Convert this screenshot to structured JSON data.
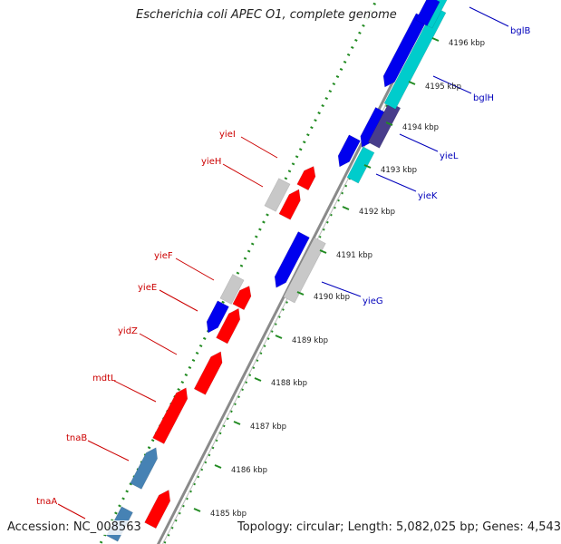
{
  "title": "Escherichia coli APEC O1, complete genome",
  "accession_label": "Accession: NC_008563",
  "summary_label": "Topology: circular; Length: 5,082,025 bp; Genes: 4,543",
  "colors": {
    "forward_cds": "#ff0000",
    "reverse_cds": "#0000ee",
    "rna": "#4682b4",
    "other": "#c8c8c8",
    "cyan": "#00cccc",
    "purple": "#483d8b",
    "backbone": "#8a8a8a",
    "forward_label": "#cc0000",
    "reverse_label": "#0000bb",
    "tick": "#228b22"
  },
  "ticks": [
    "4185 kbp",
    "4186 kbp",
    "4187 kbp",
    "4188 kbp",
    "4189 kbp",
    "4190 kbp",
    "4191 kbp",
    "4192 kbp",
    "4193 kbp",
    "4194 kbp",
    "4195 kbp",
    "4196 kbp"
  ],
  "genes_forward": [
    "tnaA",
    "tnaB",
    "mdtL",
    "yidZ",
    "yieE",
    "yieF",
    "yieH",
    "yieI"
  ],
  "genes_reverse": [
    "yieG",
    "yieK",
    "yieL",
    "bglH",
    "bglB"
  ]
}
